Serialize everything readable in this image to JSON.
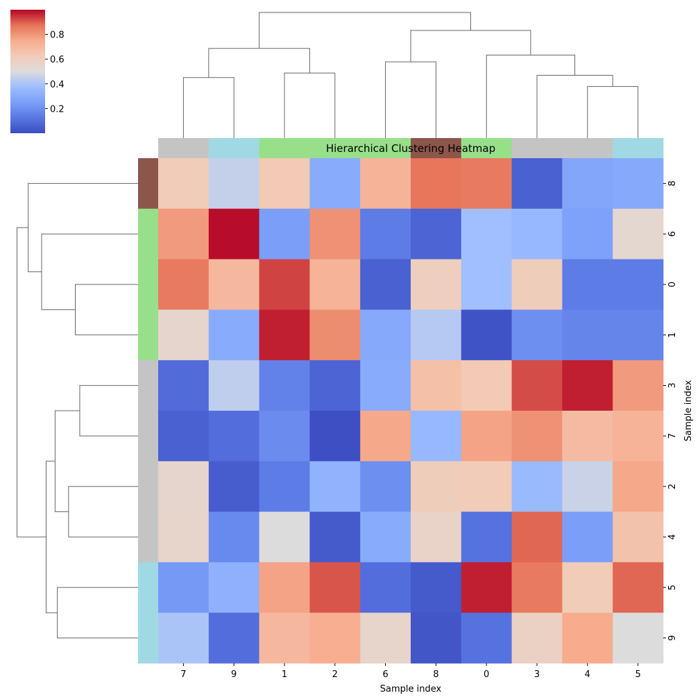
{
  "chart_data": {
    "type": "heatmap",
    "title": "Hierarchical Clustering Heatmap",
    "xlabel": "Sample index",
    "ylabel": "Sample index",
    "col_labels": [
      "7",
      "9",
      "1",
      "2",
      "6",
      "8",
      "0",
      "3",
      "4",
      "5"
    ],
    "row_labels": [
      "8",
      "6",
      "0",
      "1",
      "3",
      "7",
      "2",
      "4",
      "5",
      "9"
    ],
    "values": [
      [
        0.62,
        0.45,
        0.63,
        0.3,
        0.72,
        0.87,
        0.86,
        0.06,
        0.28,
        0.29
      ],
      [
        0.79,
        0.99,
        0.25,
        0.81,
        0.14,
        0.07,
        0.38,
        0.35,
        0.26,
        0.54
      ],
      [
        0.86,
        0.7,
        0.93,
        0.72,
        0.06,
        0.6,
        0.38,
        0.61,
        0.14,
        0.14
      ],
      [
        0.55,
        0.3,
        0.97,
        0.82,
        0.29,
        0.42,
        0.02,
        0.2,
        0.17,
        0.17
      ],
      [
        0.09,
        0.44,
        0.16,
        0.07,
        0.3,
        0.67,
        0.63,
        0.92,
        0.97,
        0.79
      ],
      [
        0.06,
        0.1,
        0.19,
        0.01,
        0.76,
        0.35,
        0.77,
        0.81,
        0.69,
        0.72
      ],
      [
        0.55,
        0.05,
        0.14,
        0.33,
        0.2,
        0.61,
        0.62,
        0.36,
        0.46,
        0.76
      ],
      [
        0.56,
        0.18,
        0.5,
        0.04,
        0.3,
        0.57,
        0.11,
        0.89,
        0.25,
        0.66
      ],
      [
        0.23,
        0.32,
        0.77,
        0.91,
        0.1,
        0.04,
        0.97,
        0.86,
        0.62,
        0.89
      ],
      [
        0.4,
        0.1,
        0.7,
        0.74,
        0.56,
        0.03,
        0.11,
        0.58,
        0.75,
        0.5
      ]
    ],
    "vmin": 0.0,
    "vmax": 1.0,
    "colormap": "coolwarm",
    "colorbar_ticks": [
      0.2,
      0.4,
      0.6,
      0.8
    ],
    "colorbar_tick_labels": [
      "0.2",
      "0.4",
      "0.6",
      "0.8"
    ],
    "col_cluster_colors": [
      "#c4c4c4",
      "#a0d9e4",
      "#98df8a",
      "#98df8a",
      "#98df8a",
      "#8c564b",
      "#98df8a",
      "#c4c4c4",
      "#c4c4c4",
      "#a0d9e4"
    ],
    "row_cluster_colors": [
      "#8c564b",
      "#98df8a",
      "#98df8a",
      "#98df8a",
      "#c4c4c4",
      "#c4c4c4",
      "#c4c4c4",
      "#c4c4c4",
      "#a0d9e4",
      "#a0d9e4"
    ],
    "col_dendrogram": [
      {
        "a": 0,
        "b": 1,
        "h": 1.35
      },
      {
        "a": 2,
        "b": 3,
        "h": 1.45
      },
      {
        "a": 4,
        "b": 5,
        "h": 1.7
      },
      {
        "a": 8,
        "b": 9,
        "h": 1.15
      },
      {
        "a": 7,
        "b": "n3",
        "h": 1.4
      },
      {
        "a": 6,
        "b": "n4",
        "h": 1.85
      },
      {
        "a": "n0",
        "b": "n1",
        "h": 2.0
      },
      {
        "a": "n2",
        "b": "n5",
        "h": 2.4
      },
      {
        "a": "n6",
        "b": "n7",
        "h": 2.8
      }
    ],
    "row_dendrogram": [
      {
        "a": 2,
        "b": 3,
        "h": 1.4
      },
      {
        "a": 1,
        "b": "n0",
        "h": 2.15
      },
      {
        "a": 0,
        "b": "n1",
        "h": 2.45
      },
      {
        "a": 4,
        "b": 5,
        "h": 1.3
      },
      {
        "a": 6,
        "b": 7,
        "h": 1.55
      },
      {
        "a": "n3",
        "b": "n4",
        "h": 1.85
      },
      {
        "a": 8,
        "b": 9,
        "h": 1.8
      },
      {
        "a": "n5",
        "b": "n6",
        "h": 2.05
      },
      {
        "a": "n2",
        "b": "n7",
        "h": 2.7
      }
    ],
    "dendrogram_max_height": 2.8
  }
}
